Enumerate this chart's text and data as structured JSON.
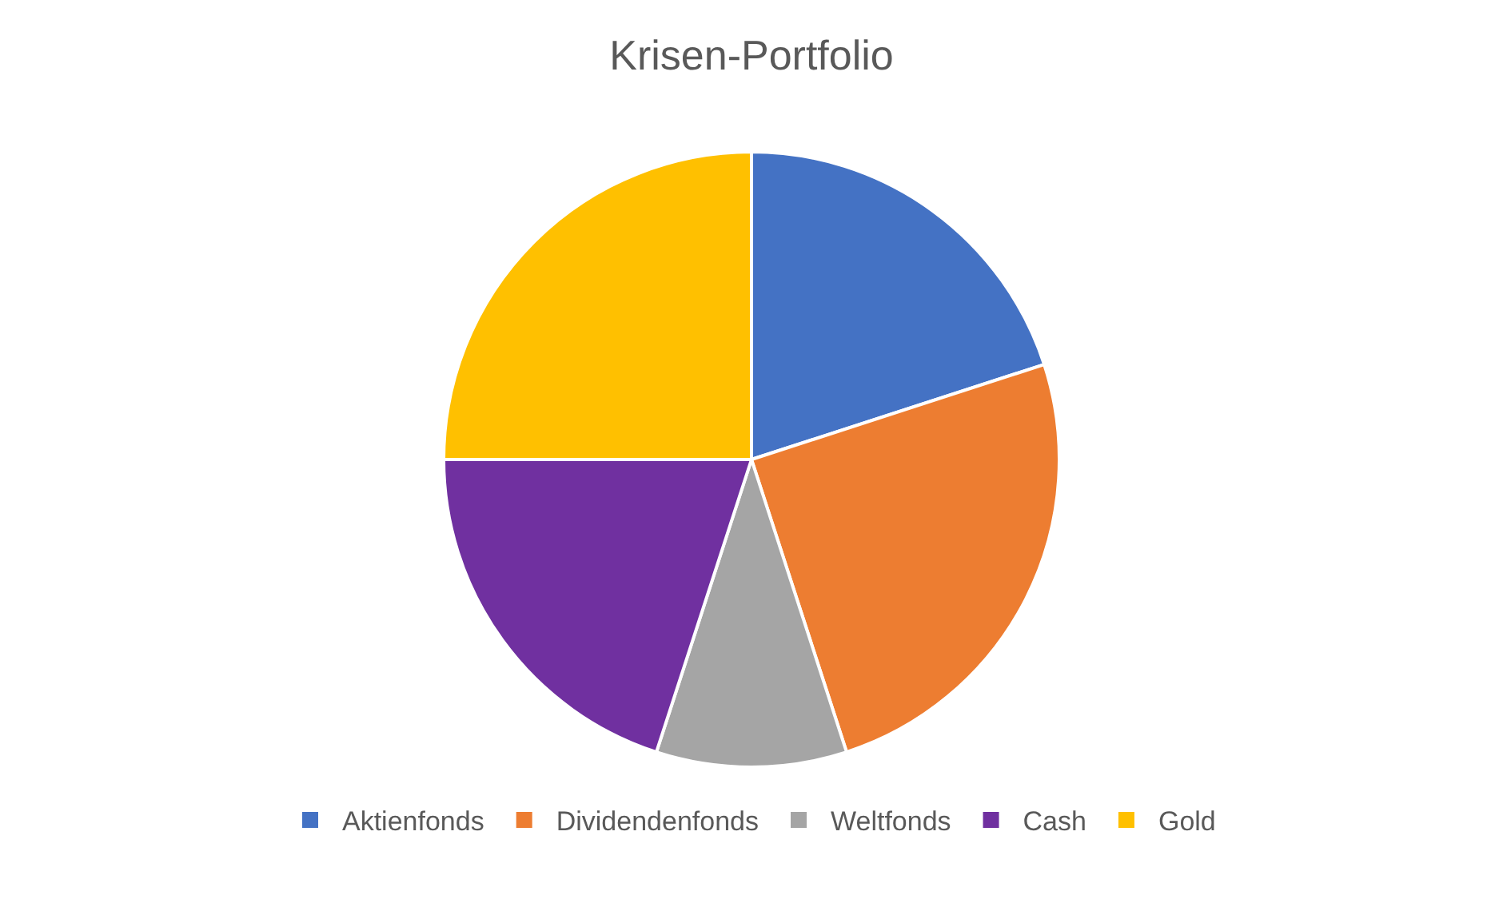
{
  "chart_data": {
    "type": "pie",
    "title": "Krisen-Portfolio",
    "categories": [
      "Aktienfonds",
      "Dividendenfonds",
      "Weltfonds",
      "Cash",
      "Gold"
    ],
    "values": [
      20,
      25,
      10,
      20,
      25
    ],
    "colors": [
      "#4472c4",
      "#ed7d31",
      "#a5a5a5",
      "#7030a0",
      "#ffc000"
    ],
    "legend": "bottom"
  }
}
